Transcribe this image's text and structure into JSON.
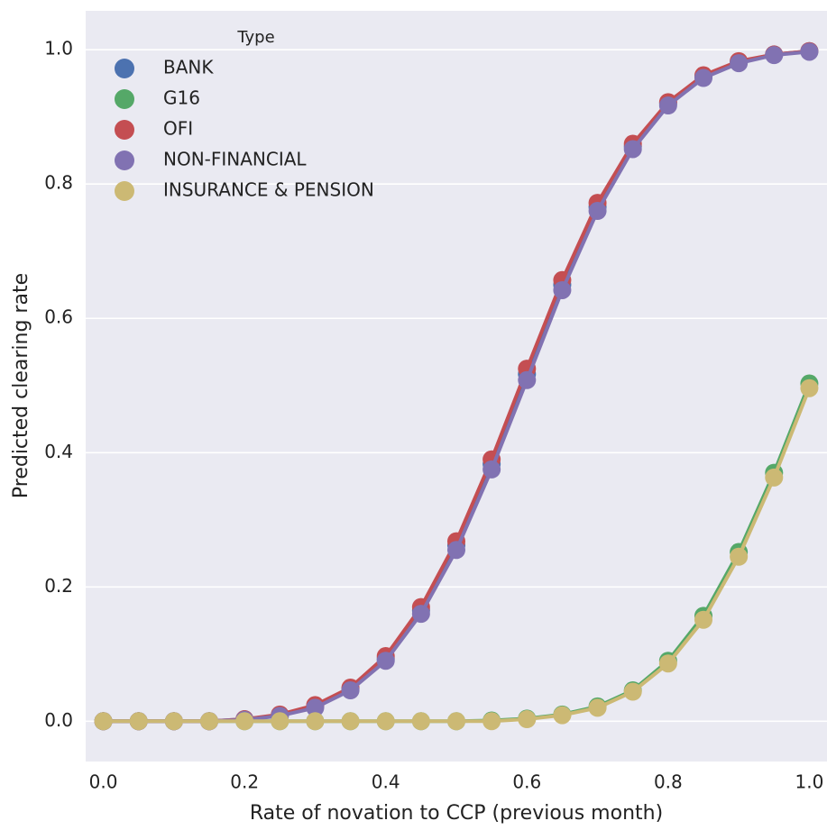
{
  "chart_data": {
    "type": "line",
    "x_label": "Rate of novation to CCP (previous month)",
    "y_label": "Predicted clearing rate",
    "legend_title": "Type",
    "legend_position": "upper left",
    "grid": "y",
    "background": "#eaeaf2",
    "x": [
      0,
      0.05,
      0.1,
      0.15,
      0.2,
      0.25,
      0.3,
      0.35,
      0.4,
      0.45,
      0.5,
      0.55,
      0.6,
      0.65,
      0.7,
      0.75,
      0.8,
      0.85,
      0.9,
      0.95,
      1
    ],
    "xlim": [
      -0.025,
      1.025
    ],
    "ylim": [
      -0.06,
      1.058
    ],
    "xticks": [
      {
        "value": 0,
        "label": "0.0"
      },
      {
        "value": 0.2,
        "label": "0.2"
      },
      {
        "value": 0.4,
        "label": "0.4"
      },
      {
        "value": 0.6,
        "label": "0.6"
      },
      {
        "value": 0.8,
        "label": "0.8"
      },
      {
        "value": 1,
        "label": "1.0"
      }
    ],
    "yticks": [
      {
        "value": 0,
        "label": "0.0"
      },
      {
        "value": 0.2,
        "label": "0.2"
      },
      {
        "value": 0.4,
        "label": "0.4"
      },
      {
        "value": 0.6,
        "label": "0.6"
      },
      {
        "value": 0.8,
        "label": "0.8"
      },
      {
        "value": 1,
        "label": "1.0"
      }
    ],
    "series": [
      {
        "name": "BANK",
        "color": "#4c72b0",
        "values": [
          0,
          0,
          0,
          0,
          0.003,
          0.009,
          0.022,
          0.048,
          0.093,
          0.165,
          0.262,
          0.383,
          0.517,
          0.65,
          0.766,
          0.856,
          0.92,
          0.96,
          0.982,
          0.993,
          0.998
        ]
      },
      {
        "name": "G16",
        "color": "#55a868",
        "values": [
          0,
          0,
          0,
          0,
          0,
          0,
          0,
          0,
          0,
          0,
          0,
          0.001,
          0.004,
          0.01,
          0.022,
          0.046,
          0.09,
          0.157,
          0.252,
          0.37,
          0.503
        ]
      },
      {
        "name": "OFI",
        "color": "#c44e52",
        "values": [
          0,
          0,
          0,
          0,
          0.003,
          0.01,
          0.024,
          0.05,
          0.097,
          0.17,
          0.268,
          0.39,
          0.525,
          0.657,
          0.772,
          0.86,
          0.922,
          0.962,
          0.983,
          0.993,
          0.998
        ]
      },
      {
        "name": "NON-FINANCIAL",
        "color": "#8172b2",
        "values": [
          0,
          0,
          0,
          0,
          0.002,
          0.008,
          0.02,
          0.046,
          0.09,
          0.16,
          0.255,
          0.375,
          0.508,
          0.642,
          0.76,
          0.852,
          0.917,
          0.958,
          0.98,
          0.992,
          0.997
        ]
      },
      {
        "name": "INSURANCE & PENSION",
        "color": "#ccb974",
        "values": [
          0,
          0,
          0,
          0,
          0,
          0,
          0,
          0,
          0,
          0,
          0,
          0,
          0.003,
          0.009,
          0.02,
          0.044,
          0.086,
          0.151,
          0.245,
          0.363,
          0.496
        ]
      }
    ]
  }
}
